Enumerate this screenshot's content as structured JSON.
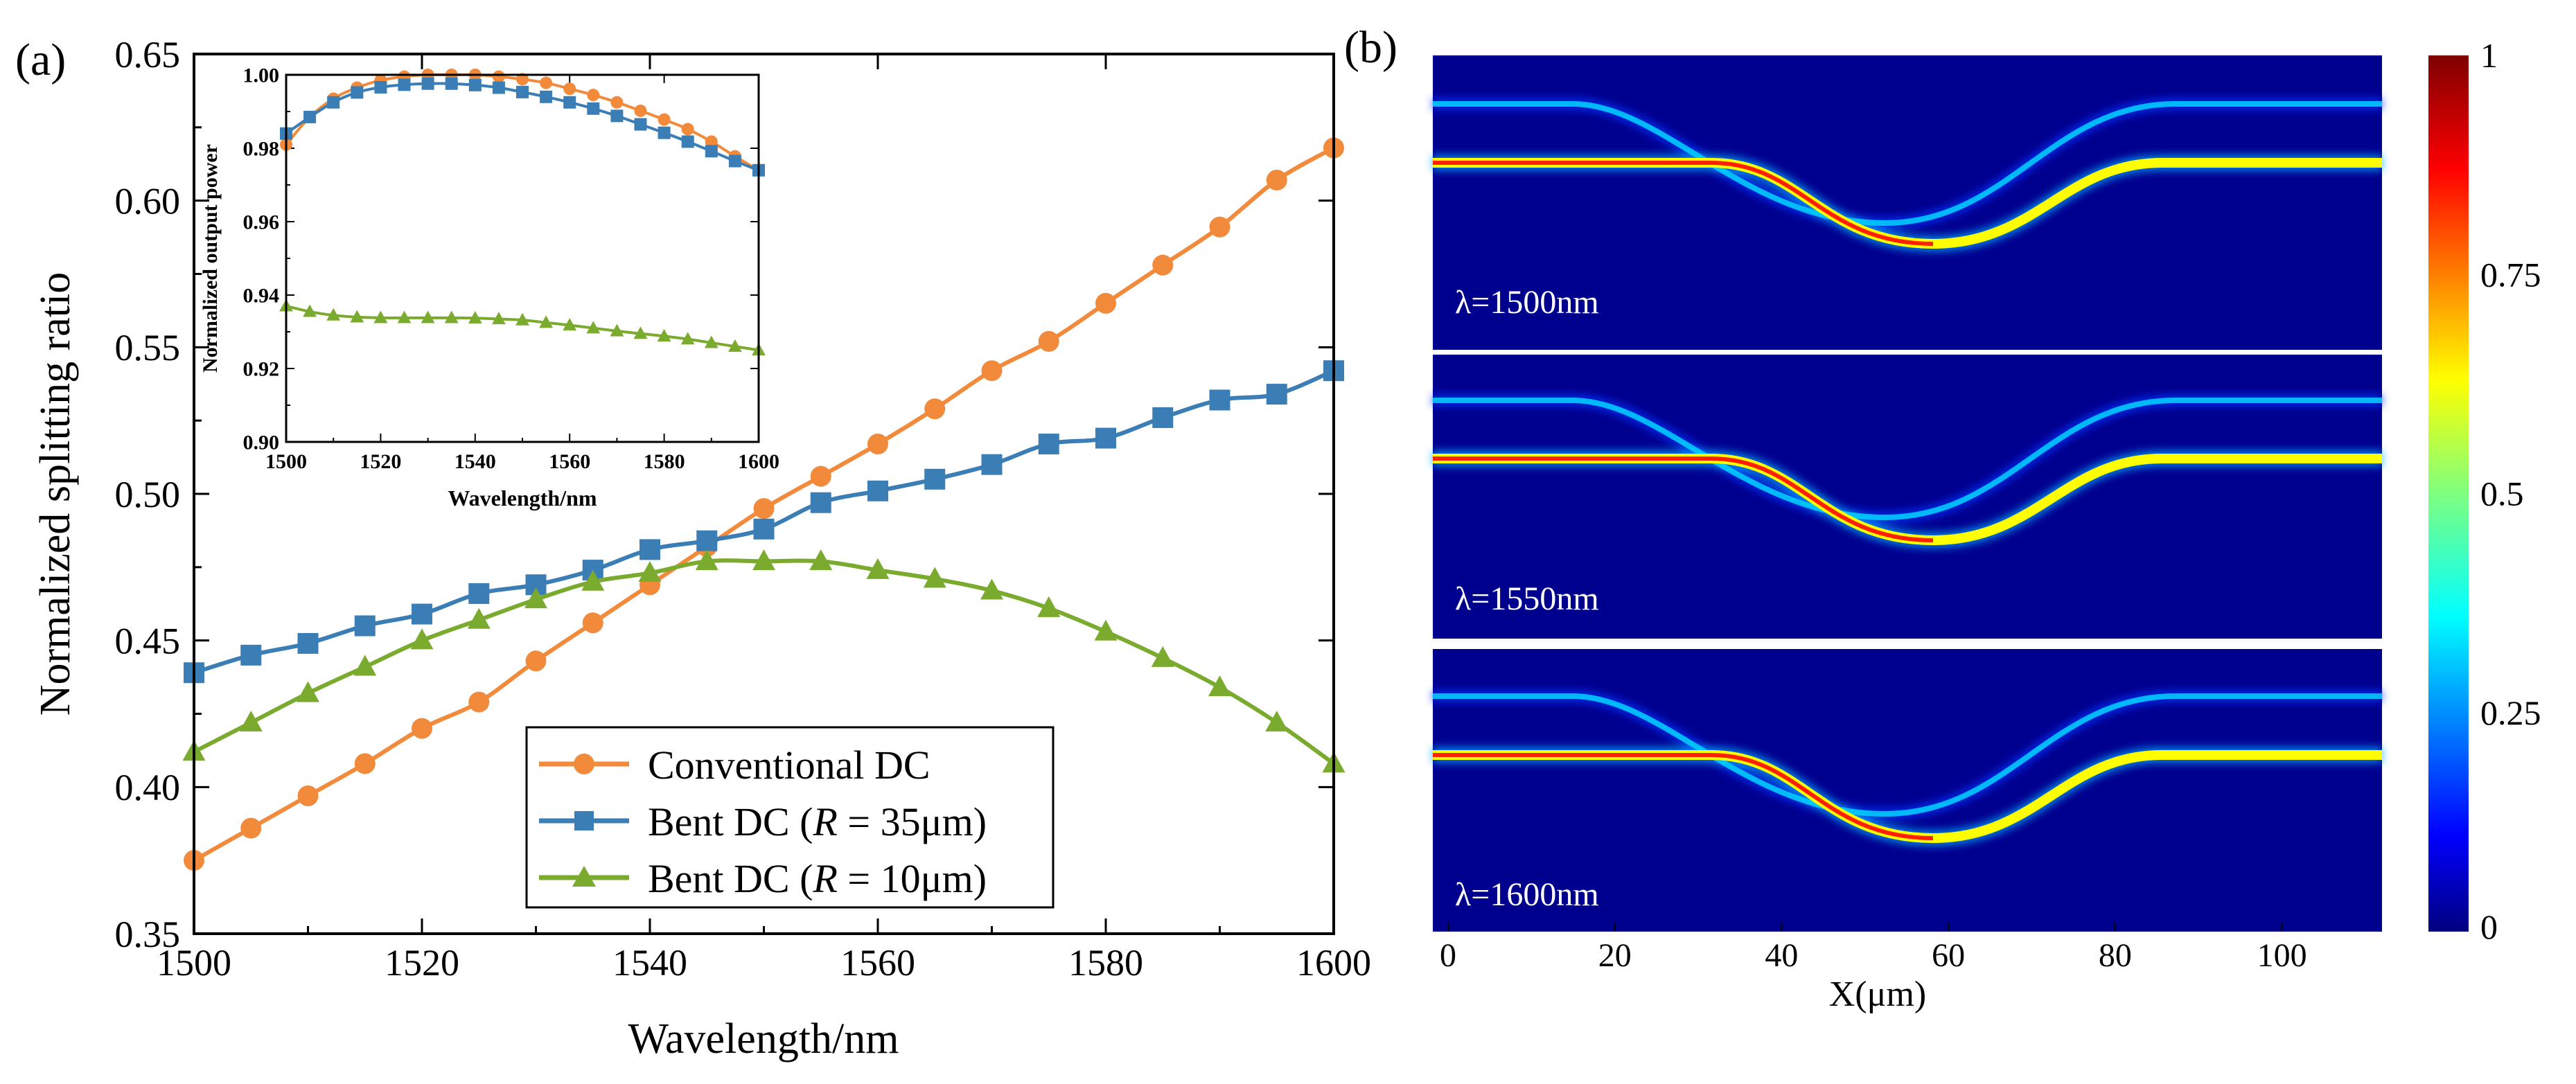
{
  "chart_data": [
    {
      "panel": "(a)",
      "type": "line",
      "xlabel": "Wavelength/nm",
      "ylabel": "Normalized splitting ratio",
      "xlim": [
        1500,
        1600
      ],
      "ylim": [
        0.35,
        0.65
      ],
      "xticks": [
        1500,
        1520,
        1540,
        1560,
        1580,
        1600
      ],
      "yticks": [
        "0.35",
        "0.40",
        "0.45",
        "0.50",
        "0.55",
        "0.60",
        "0.65"
      ],
      "x": [
        1500,
        1505,
        1510,
        1515,
        1520,
        1525,
        1530,
        1535,
        1540,
        1545,
        1550,
        1555,
        1560,
        1565,
        1570,
        1575,
        1580,
        1585,
        1590,
        1595,
        1600
      ],
      "legend_position": "bottom-center",
      "legend": [
        "Conventional DC",
        "Bent DC (",
        "R",
        " = 35μm)",
        "Bent DC (",
        "R",
        " = 10μm)"
      ],
      "series": [
        {
          "name": "Conventional DC",
          "color": "#F28A3C",
          "marker": "circle",
          "values": [
            0.375,
            0.386,
            0.397,
            0.408,
            0.42,
            0.429,
            0.443,
            0.456,
            0.469,
            0.482,
            0.495,
            0.506,
            0.517,
            0.529,
            0.542,
            0.552,
            0.565,
            0.578,
            0.591,
            0.607,
            0.618
          ]
        },
        {
          "name": "Bent DC (R = 35μm)",
          "color": "#3B7DB5",
          "marker": "square",
          "values": [
            0.439,
            0.445,
            0.449,
            0.455,
            0.459,
            0.466,
            0.469,
            0.474,
            0.481,
            0.484,
            0.488,
            0.497,
            0.501,
            0.505,
            0.51,
            0.517,
            0.519,
            0.526,
            0.532,
            0.534,
            0.542
          ]
        },
        {
          "name": "Bent DC (R = 10μm)",
          "color": "#7AAB2E",
          "marker": "triangle",
          "values": [
            0.412,
            0.422,
            0.432,
            0.441,
            0.45,
            0.457,
            0.464,
            0.47,
            0.473,
            0.477,
            0.477,
            0.477,
            0.474,
            0.471,
            0.467,
            0.461,
            0.453,
            0.444,
            0.434,
            0.422,
            0.408
          ]
        }
      ]
    },
    {
      "panel": "(a) inset",
      "type": "line",
      "xlabel": "Wavelength/nm",
      "ylabel": "Normalized output power",
      "xlim": [
        1500,
        1600
      ],
      "ylim": [
        0.9,
        1.0
      ],
      "xticks": [
        1500,
        1520,
        1540,
        1560,
        1580,
        1600
      ],
      "yticks": [
        "0.90",
        "0.92",
        "0.94",
        "0.96",
        "0.98",
        "1.00"
      ],
      "x": [
        1500,
        1505,
        1510,
        1515,
        1520,
        1525,
        1530,
        1535,
        1540,
        1545,
        1550,
        1555,
        1560,
        1565,
        1570,
        1575,
        1580,
        1585,
        1590,
        1595,
        1600
      ],
      "series": [
        {
          "name": "Conventional DC",
          "color": "#F28A3C",
          "marker": "circle",
          "values": [
            0.981,
            0.9885,
            0.9935,
            0.9965,
            0.9985,
            0.9995,
            1.0,
            1.0,
            1.0,
            0.9995,
            0.9988,
            0.9978,
            0.9962,
            0.9945,
            0.9925,
            0.9902,
            0.9878,
            0.9852,
            0.9818,
            0.9778,
            0.974
          ]
        },
        {
          "name": "Bent DC (R = 35μm)",
          "color": "#3B7DB5",
          "marker": "square",
          "values": [
            0.984,
            0.9885,
            0.9925,
            0.9952,
            0.9966,
            0.9973,
            0.9976,
            0.9976,
            0.9972,
            0.9965,
            0.9953,
            0.994,
            0.9925,
            0.9908,
            0.9888,
            0.9865,
            0.9842,
            0.9818,
            0.9792,
            0.9765,
            0.974
          ]
        },
        {
          "name": "Bent DC (R = 10μm)",
          "color": "#7AAB2E",
          "marker": "triangle",
          "values": [
            0.937,
            0.9355,
            0.9345,
            0.934,
            0.9338,
            0.9338,
            0.9338,
            0.9338,
            0.9337,
            0.9335,
            0.9332,
            0.9325,
            0.9318,
            0.931,
            0.9302,
            0.9295,
            0.9288,
            0.928,
            0.927,
            0.926,
            0.925
          ]
        }
      ]
    },
    {
      "panel": "(b)",
      "type": "heatmap",
      "xlabel": "X(μm)",
      "xlim": [
        0,
        112
      ],
      "xticks": [
        0,
        20,
        40,
        60,
        80,
        100
      ],
      "colorbar_ticks": [
        "1",
        "0.75",
        "0.5",
        "0.25",
        "0"
      ],
      "colorbar_range": [
        0,
        1
      ],
      "subpanels": [
        "λ=1500nm",
        "λ=1550nm",
        "λ=1600nm"
      ],
      "colormap": [
        "#00007F",
        "#0000FF",
        "#007FFF",
        "#00FFFF",
        "#7FFF7F",
        "#FFFF00",
        "#FF7F00",
        "#FF0000",
        "#7F0000"
      ]
    }
  ]
}
